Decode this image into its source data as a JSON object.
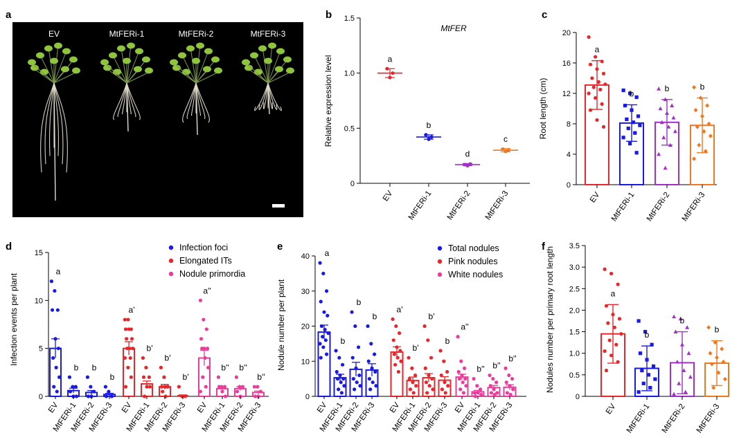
{
  "figure": {
    "colors": {
      "EV": "#e8262b",
      "MtFERi-1": "#1a1ae6",
      "MtFERi-2": "#a030c8",
      "MtFERi-3": "#f07820",
      "foci": "#1a1ae6",
      "its": "#e8262b",
      "prim": "#ec3c9a",
      "axis": "#000000"
    },
    "panel_a": {
      "letter": "a",
      "labels": [
        "EV",
        "MtFERi-1",
        "MtFERi-2",
        "MtFERi-3"
      ]
    }
  },
  "chart_data": [
    {
      "id": "b",
      "letter": "b",
      "type": "scatter",
      "title": "MtFER",
      "ylabel": "Relative expression level",
      "ylim": [
        0,
        1.5
      ],
      "yticks": [
        "0",
        "0.5",
        "1.0",
        "1.5"
      ],
      "categories": [
        "EV",
        "MtFERi-1",
        "MtFERi-2",
        "MtFERi-3"
      ],
      "means": [
        1.0,
        0.42,
        0.17,
        0.3
      ],
      "sd": [
        0.04,
        0.02,
        0.01,
        0.015
      ],
      "points": [
        [
          1.04,
          0.96,
          1.0
        ],
        [
          0.44,
          0.4,
          0.42
        ],
        [
          0.17,
          0.16,
          0.175
        ],
        [
          0.31,
          0.29,
          0.3
        ]
      ],
      "letters": [
        "a",
        "b",
        "d",
        "c"
      ]
    },
    {
      "id": "c",
      "letter": "c",
      "type": "bar",
      "ylabel": "Root length (cm)",
      "ylim": [
        0,
        20
      ],
      "yticks": [
        "0",
        "4",
        "8",
        "12",
        "16",
        "20"
      ],
      "categories": [
        "EV",
        "MtFERi-1",
        "MtFERi-2",
        "MtFERi-3"
      ],
      "means": [
        13.1,
        8.1,
        8.2,
        7.8
      ],
      "sd": [
        3.2,
        2.4,
        3.0,
        3.6
      ],
      "points": [
        [
          19.4,
          16.8,
          16.2,
          15.8,
          15.2,
          14.6,
          14.0,
          13.5,
          13.2,
          12.8,
          12.5,
          12.0,
          11.4,
          10.6,
          9.8,
          8.5,
          7.6
        ],
        [
          12.4,
          12.0,
          11.5,
          10.4,
          9.8,
          9.0,
          8.6,
          8.2,
          7.8,
          7.4,
          6.8,
          6.2,
          5.4,
          4.2
        ],
        [
          12.6,
          11.2,
          10.4,
          10.0,
          9.4,
          8.8,
          8.2,
          7.6,
          7.0,
          6.2,
          5.2,
          4.0,
          2.2
        ],
        [
          12.8,
          11.4,
          10.4,
          9.8,
          9.0,
          8.0,
          7.6,
          7.0,
          6.4,
          5.2,
          4.4,
          3.4
        ]
      ],
      "letters": [
        "a",
        "b",
        "b",
        "b"
      ]
    },
    {
      "id": "d",
      "letter": "d",
      "type": "bar",
      "ylabel": "Infection events per plant",
      "ylim": [
        0,
        15
      ],
      "yticks": [
        "0",
        "5",
        "10",
        "15"
      ],
      "categories": [
        "EV",
        "MtFERi-1",
        "MtFERi-2",
        "MtFERi-3"
      ],
      "legend": [
        "Infection foci",
        "Elongated ITs",
        "Nodule primordia"
      ],
      "series": [
        {
          "name": "Infection foci",
          "means": [
            5.0,
            0.6,
            0.4,
            0.2
          ],
          "sem": [
            1.0,
            0.25,
            0.2,
            0.12
          ],
          "letters": [
            "a",
            "b",
            "b",
            "b"
          ],
          "points": [
            [
              12,
              11,
              9,
              9,
              6,
              5,
              4,
              3,
              2,
              1,
              0.5
            ],
            [
              2,
              1,
              1,
              0.5,
              0,
              0
            ],
            [
              2,
              1,
              0.5,
              0,
              0
            ],
            [
              1,
              0.5,
              0,
              0
            ]
          ]
        },
        {
          "name": "Elongated ITs",
          "means": [
            5.0,
            1.3,
            1.0,
            0.1
          ],
          "sem": [
            0.7,
            0.3,
            0.25,
            0.05
          ],
          "letters": [
            "a'",
            "b'",
            "b'",
            "b'"
          ],
          "points": [
            [
              8,
              8,
              7,
              7,
              7,
              6,
              6,
              5,
              5,
              5,
              4,
              4,
              3,
              2,
              1
            ],
            [
              4,
              3,
              2,
              2,
              1,
              1,
              0
            ],
            [
              3,
              2,
              1,
              1,
              1,
              1,
              0.5,
              0
            ],
            [
              1,
              0,
              0
            ]
          ]
        },
        {
          "name": "Nodule primordia",
          "means": [
            4.0,
            0.8,
            0.8,
            0.4
          ],
          "sem": [
            0.8,
            0.2,
            0.2,
            0.15
          ],
          "letters": [
            "a''",
            "b''",
            "b''",
            "b''"
          ],
          "points": [
            [
              10,
              8,
              7,
              6,
              5,
              5,
              5,
              4,
              3,
              2,
              1,
              0.5
            ],
            [
              2,
              1,
              1,
              1,
              0.5,
              0
            ],
            [
              2,
              1,
              1,
              0.5,
              0
            ],
            [
              1,
              1,
              0.5,
              0,
              0
            ]
          ]
        }
      ]
    },
    {
      "id": "e",
      "letter": "e",
      "type": "bar",
      "ylabel": "Nodule number per plant",
      "ylim": [
        0,
        40
      ],
      "yticks": [
        "0",
        "10",
        "20",
        "30",
        "40"
      ],
      "categories": [
        "EV",
        "MtFERi-1",
        "MtFERi-2",
        "MtFERi-3"
      ],
      "legend": [
        "Total nodules",
        "Pink nodules",
        "White nodules"
      ],
      "series": [
        {
          "name": "Total nodules",
          "means": [
            18.3,
            5.3,
            7.7,
            7.5
          ],
          "sem": [
            2.0,
            1.0,
            2.0,
            1.8
          ],
          "letters": [
            "a",
            "b",
            "b",
            "b"
          ],
          "points": [
            [
              38,
              35,
              30,
              27,
              24,
              23,
              20,
              19,
              18,
              17,
              16,
              15,
              14,
              12,
              11
            ],
            [
              13,
              11,
              9,
              7,
              6,
              5,
              5,
              4,
              3,
              2,
              1
            ],
            [
              24,
              20,
              14,
              11,
              8,
              6,
              5,
              4,
              3,
              2
            ],
            [
              20,
              15,
              12,
              10,
              8,
              7,
              5,
              4,
              3,
              2
            ]
          ]
        },
        {
          "name": "Pink nodules",
          "means": [
            12.6,
            4.5,
            5.3,
            4.6
          ],
          "sem": [
            1.5,
            1.0,
            1.2,
            1.0
          ],
          "letters": [
            "a'",
            "b'",
            "b'",
            "b"
          ],
          "points": [
            [
              22,
              20,
              18,
              16,
              14,
              13,
              12,
              11,
              10,
              9,
              7
            ],
            [
              11,
              8,
              6,
              5,
              4,
              3,
              2,
              1
            ],
            [
              20,
              16,
              11,
              8,
              6,
              5,
              4,
              3,
              2,
              1
            ],
            [
              13,
              10,
              7,
              6,
              4,
              3,
              2,
              1
            ]
          ]
        },
        {
          "name": "White nodules",
          "means": [
            5.5,
            1.3,
            2.5,
            2.6
          ],
          "sem": [
            0.8,
            0.4,
            0.6,
            0.7
          ],
          "letters": [
            "a''",
            "b''",
            "b''",
            "b''"
          ],
          "points": [
            [
              17,
              10,
              8,
              7,
              6,
              5,
              5,
              4,
              3,
              2,
              1
            ],
            [
              5,
              3,
              2,
              1,
              1,
              0.5,
              0
            ],
            [
              6,
              5,
              4,
              3,
              2,
              1,
              1,
              0.5
            ],
            [
              8,
              6,
              5,
              4,
              3,
              2,
              1,
              0.5
            ]
          ]
        }
      ]
    },
    {
      "id": "f",
      "letter": "f",
      "type": "bar",
      "ylabel": "Nodules number per primary root length",
      "ylim": [
        0,
        3.5
      ],
      "yticks": [
        "0",
        "0.5",
        "1.0",
        "1.5",
        "2.0",
        "2.5",
        "3.0",
        "3.5"
      ],
      "categories": [
        "EV",
        "MtFERi-1",
        "MtFERi-2",
        "MtFERi-3"
      ],
      "means": [
        1.45,
        0.65,
        0.78,
        0.77
      ],
      "sd": [
        0.68,
        0.52,
        0.72,
        0.52
      ],
      "points": [
        [
          2.95,
          2.85,
          2.6,
          2.1,
          1.9,
          1.8,
          1.7,
          1.6,
          1.45,
          1.3,
          1.2,
          1.05,
          0.95,
          0.8,
          0.6
        ],
        [
          1.75,
          1.5,
          1.2,
          1.0,
          0.85,
          0.7,
          0.6,
          0.5,
          0.4,
          0.3,
          0.2,
          0.1
        ],
        [
          1.85,
          1.8,
          1.6,
          1.5,
          1.2,
          1.0,
          0.8,
          0.6,
          0.45,
          0.3,
          0.1,
          0.05
        ],
        [
          1.6,
          1.25,
          1.1,
          1.0,
          0.9,
          0.8,
          0.75,
          0.55,
          0.4,
          0.2
        ]
      ],
      "letters": [
        "a",
        "b",
        "b",
        "b"
      ]
    }
  ]
}
